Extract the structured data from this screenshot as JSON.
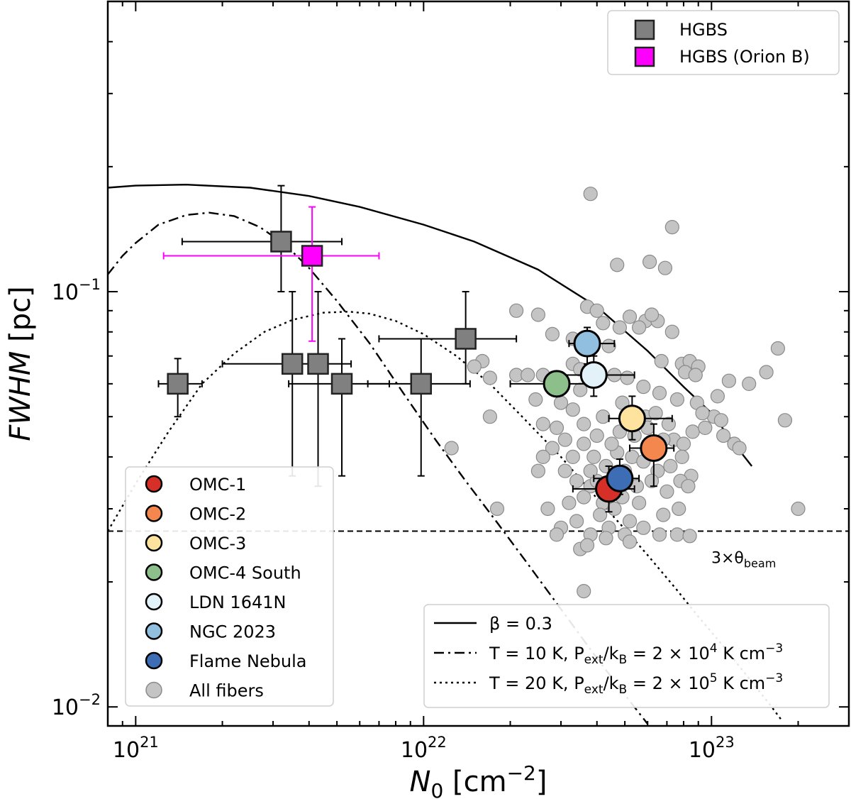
{
  "chart_data": {
    "type": "scatter",
    "xscale": "log",
    "yscale": "log",
    "xlim": [
      8e+20,
      3e+23
    ],
    "ylim": [
      0.009,
      0.5
    ],
    "xlabel": "N",
    "xlabel_sub": "0",
    "xlabel_units": "[cm",
    "xlabel_units_sup": "−2",
    "xlabel_units_end": "]",
    "ylabel": "FWHM",
    "ylabel_units": " [pc]",
    "x_ticks": [
      {
        "value": 1e+21,
        "base": "10",
        "exp": "21"
      },
      {
        "value": 1e+22,
        "base": "10",
        "exp": "22"
      },
      {
        "value": 1e+23,
        "base": "10",
        "exp": "23"
      }
    ],
    "y_ticks": [
      {
        "value": 0.01,
        "base": "10",
        "exp": "−2"
      },
      {
        "value": 0.1,
        "base": "10",
        "exp": "−1"
      }
    ],
    "beam_line": {
      "y": 0.0265,
      "label": "3×θ",
      "label_sub": "beam"
    },
    "curves": [
      {
        "name": "beta",
        "style": "solid",
        "legend": "β = 0.3",
        "points": [
          [
            8e+20,
            0.178
          ],
          [
            1e+21,
            0.18
          ],
          [
            1.5e+21,
            0.181
          ],
          [
            2.5e+21,
            0.178
          ],
          [
            4e+21,
            0.17
          ],
          [
            6e+21,
            0.16
          ],
          [
            1e+22,
            0.145
          ],
          [
            1.5e+22,
            0.132
          ],
          [
            2.5e+22,
            0.113
          ],
          [
            4e+22,
            0.092
          ],
          [
            6e+22,
            0.072
          ],
          [
            8e+22,
            0.059
          ],
          [
            1e+23,
            0.051
          ],
          [
            1.2e+23,
            0.043
          ],
          [
            1.38e+23,
            0.038
          ]
        ]
      },
      {
        "name": "t10",
        "style": "dashdot",
        "legend_pre": "T = 10 K, P",
        "legend_sub": "ext",
        "legend_mid": "/k",
        "legend_sub2": "B",
        "legend_post": " = 2 × 10",
        "legend_sup": "4",
        "legend_end": " K cm",
        "legend_sup2": "−3",
        "points": [
          [
            8e+20,
            0.11
          ],
          [
            9e+20,
            0.122
          ],
          [
            1e+21,
            0.131
          ],
          [
            1.2e+21,
            0.145
          ],
          [
            1.5e+21,
            0.153
          ],
          [
            1.8e+21,
            0.155
          ],
          [
            2.2e+21,
            0.152
          ],
          [
            2.7e+21,
            0.143
          ],
          [
            3.3e+21,
            0.13
          ],
          [
            4e+21,
            0.114
          ],
          [
            5e+21,
            0.095
          ],
          [
            6.5e+21,
            0.075
          ],
          [
            8.5e+21,
            0.057
          ],
          [
            1.1e+22,
            0.044
          ],
          [
            1.4e+22,
            0.035
          ],
          [
            1.8e+22,
            0.0278
          ],
          [
            2.3e+22,
            0.0221
          ],
          [
            3e+22,
            0.0172
          ],
          [
            4e+22,
            0.0131
          ],
          [
            5e+22,
            0.0107
          ],
          [
            6e+22,
            0.0091
          ]
        ]
      },
      {
        "name": "t20",
        "style": "dotted",
        "legend_pre": "T = 20 K, P",
        "legend_sub": "ext",
        "legend_mid": "/k",
        "legend_sub2": "B",
        "legend_post": " = 2 × 10",
        "legend_sup": "5",
        "legend_end": " K cm",
        "legend_sup2": "−3",
        "points": [
          [
            8e+20,
            0.0265
          ],
          [
            1e+21,
            0.0345
          ],
          [
            1.3e+21,
            0.046
          ],
          [
            1.7e+21,
            0.06
          ],
          [
            2.2e+21,
            0.071
          ],
          [
            2.8e+21,
            0.08
          ],
          [
            3.5e+21,
            0.0855
          ],
          [
            4.5e+21,
            0.089
          ],
          [
            5.5e+21,
            0.0895
          ],
          [
            6.5e+21,
            0.0885
          ],
          [
            8e+21,
            0.085
          ],
          [
            1e+22,
            0.079
          ],
          [
            1.3e+22,
            0.07
          ],
          [
            1.7e+22,
            0.06
          ],
          [
            2.2e+22,
            0.05
          ],
          [
            3e+22,
            0.04
          ],
          [
            4e+22,
            0.0318
          ],
          [
            5e+22,
            0.0268
          ],
          [
            6e+22,
            0.0232
          ],
          [
            7.5e+22,
            0.0193
          ],
          [
            9e+22,
            0.0165
          ],
          [
            1.1e+23,
            0.014
          ],
          [
            1.3e+23,
            0.0121
          ],
          [
            1.6e+23,
            0.0101
          ],
          [
            1.75e+23,
            0.0093
          ]
        ]
      }
    ],
    "hgbs_points": [
      {
        "x": 1.4e+21,
        "y": 0.06,
        "xerr": [
          1.2e+21,
          1.7e+21
        ],
        "yerr": [
          0.05,
          0.069
        ]
      },
      {
        "x": 3.2e+21,
        "y": 0.132,
        "xerr": [
          1.45e+21,
          5.2e+21
        ],
        "yerr": [
          0.1,
          0.18
        ]
      },
      {
        "x": 3.5e+21,
        "y": 0.067,
        "xerr": [
          2e+21,
          4.4e+21
        ],
        "yerr": [
          0.036,
          0.1
        ]
      },
      {
        "x": 4.3e+21,
        "y": 0.067,
        "xerr": [
          4.3e+21,
          5.6e+21
        ],
        "yerr": [
          0.034,
          0.1
        ]
      },
      {
        "x": 5.2e+21,
        "y": 0.06,
        "xerr": [
          3.4e+21,
          7.6e+21
        ],
        "yerr": [
          0.036,
          0.077
        ]
      },
      {
        "x": 9.8e+21,
        "y": 0.06,
        "xerr": [
          6.4e+21,
          1.45e+22
        ],
        "yerr": [
          0.036,
          0.077
        ]
      },
      {
        "x": 1.4e+22,
        "y": 0.077,
        "xerr": [
          7e+21,
          2.1e+22
        ],
        "yerr": [
          0.06,
          0.1
        ]
      }
    ],
    "hgbs_orion_points": [
      {
        "x": 4.1e+21,
        "y": 0.122,
        "xerr": [
          1.25e+21,
          7e+21
        ],
        "yerr": [
          0.076,
          0.16
        ]
      }
    ],
    "regions": [
      {
        "name": "OMC-1",
        "color": "#d62f27",
        "x": 4.4e+22,
        "y": 0.0335,
        "xerr": [
          3.3e+22,
          5.4e+22
        ],
        "yerr": [
          0.0295,
          0.038
        ]
      },
      {
        "name": "OMC-2",
        "color": "#f4874d",
        "x": 6.3e+22,
        "y": 0.042,
        "xerr": [
          5.2e+22,
          7.4e+22
        ],
        "yerr": [
          0.034,
          0.048
        ]
      },
      {
        "name": "OMC-3",
        "color": "#fde39d",
        "x": 5.3e+22,
        "y": 0.0495,
        "xerr": [
          4.4e+22,
          7.3e+22
        ],
        "yerr": [
          0.044,
          0.056
        ]
      },
      {
        "name": "OMC-4 South",
        "color": "#8dbf8b",
        "x": 2.9e+22,
        "y": 0.06,
        "xerr": [
          2e+22,
          4e+22
        ],
        "yerr": [
          0.056,
          0.063
        ]
      },
      {
        "name": "LDN 1641N",
        "color": "#e3f2f9",
        "x": 3.9e+22,
        "y": 0.063,
        "xerr": [
          3e+22,
          5.4e+22
        ],
        "yerr": [
          0.056,
          0.07
        ]
      },
      {
        "name": "NGC 2023",
        "color": "#91bfdf",
        "x": 3.7e+22,
        "y": 0.075,
        "xerr": [
          3.2e+22,
          4.6e+22
        ],
        "yerr": [
          0.067,
          0.082
        ]
      },
      {
        "name": "Flame Nebula",
        "color": "#3d6eb5",
        "x": 4.8e+22,
        "y": 0.0355,
        "xerr": [
          3.9e+22,
          5.6e+22
        ],
        "yerr": [
          0.0325,
          0.0395
        ]
      }
    ],
    "legend_upper": [
      {
        "label": "HGBS",
        "color": "#808080"
      },
      {
        "label": "HGBS (Orion B)",
        "color": "#ff00ff"
      }
    ],
    "all_fibers_label": "All fibers",
    "all_fibers": [
      [
        3.8e+22,
        0.172
      ],
      [
        7.3e+22,
        0.143
      ],
      [
        6.1e+22,
        0.118
      ],
      [
        6.9e+22,
        0.114
      ],
      [
        4.7e+22,
        0.116
      ],
      [
        3.7e+22,
        0.092
      ],
      [
        4e+22,
        0.09
      ],
      [
        2.1e+22,
        0.09
      ],
      [
        2.5e+22,
        0.088
      ],
      [
        4.2e+22,
        0.084
      ],
      [
        5.2e+22,
        0.087
      ],
      [
        5.9e+22,
        0.085
      ],
      [
        6.5e+22,
        0.085
      ],
      [
        6.2e+22,
        0.088
      ],
      [
        4.8e+22,
        0.082
      ],
      [
        5.6e+22,
        0.082
      ],
      [
        7.3e+22,
        0.08
      ],
      [
        2.8e+22,
        0.079
      ],
      [
        3.3e+22,
        0.077
      ],
      [
        4.4e+22,
        0.074
      ],
      [
        6.7e+22,
        0.068
      ],
      [
        7.9e+22,
        0.067
      ],
      [
        8.4e+22,
        0.068
      ],
      [
        9e+22,
        0.066
      ],
      [
        8.1e+22,
        0.064
      ],
      [
        8.8e+22,
        0.063
      ],
      [
        1.6e+22,
        0.068
      ],
      [
        1.7e+22,
        0.062
      ],
      [
        1.5e+22,
        0.066
      ],
      [
        2.1e+22,
        0.063
      ],
      [
        2.3e+22,
        0.063
      ],
      [
        2.6e+22,
        0.063
      ],
      [
        3.3e+22,
        0.067
      ],
      [
        3.5e+22,
        0.065
      ],
      [
        4.6e+22,
        0.063
      ],
      [
        5.1e+22,
        0.062
      ],
      [
        5.8e+22,
        0.059
      ],
      [
        6.6e+22,
        0.057
      ],
      [
        7.6e+22,
        0.055
      ],
      [
        8.9e+22,
        0.054
      ],
      [
        1.05e+23,
        0.056
      ],
      [
        1.15e+23,
        0.061
      ],
      [
        1.35e+23,
        0.06
      ],
      [
        1.55e+23,
        0.064
      ],
      [
        1.7e+23,
        0.073
      ],
      [
        1.8e+23,
        0.049
      ],
      [
        1.02e+23,
        0.05
      ],
      [
        1.08e+23,
        0.049
      ],
      [
        9.3e+22,
        0.051
      ],
      [
        1.1e+23,
        0.045
      ],
      [
        1.2e+23,
        0.043
      ],
      [
        1.25e+23,
        0.042
      ],
      [
        1.7e+22,
        0.05
      ],
      [
        2.45e+22,
        0.055
      ],
      [
        3e+22,
        0.054
      ],
      [
        3.3e+22,
        0.052
      ],
      [
        2.9e+22,
        0.047
      ],
      [
        2.6e+22,
        0.048
      ],
      [
        3.1e+22,
        0.044
      ],
      [
        3.6e+22,
        0.048
      ],
      [
        4.2e+22,
        0.05
      ],
      [
        4.8e+22,
        0.046
      ],
      [
        5.4e+22,
        0.045
      ],
      [
        5.9e+22,
        0.05
      ],
      [
        6.4e+22,
        0.051
      ],
      [
        7.4e+22,
        0.044
      ],
      [
        8e+22,
        0.043
      ],
      [
        8.6e+22,
        0.046
      ],
      [
        9.5e+22,
        0.047
      ],
      [
        2.8e+22,
        0.042
      ],
      [
        3.3e+22,
        0.04
      ],
      [
        3.6e+22,
        0.043
      ],
      [
        3.9e+22,
        0.04
      ],
      [
        4.3e+22,
        0.038
      ],
      [
        4.7e+22,
        0.041
      ],
      [
        5.3e+22,
        0.04
      ],
      [
        5.8e+22,
        0.039
      ],
      [
        6.5e+22,
        0.037
      ],
      [
        7.2e+22,
        0.038
      ],
      [
        7.9e+22,
        0.04
      ],
      [
        8.5e+22,
        0.036
      ],
      [
        2.5e+22,
        0.037
      ],
      [
        3.1e+22,
        0.037
      ],
      [
        3.4e+22,
        0.035
      ],
      [
        3.8e+22,
        0.034
      ],
      [
        4.2e+22,
        0.031
      ],
      [
        4.9e+22,
        0.032
      ],
      [
        5.5e+22,
        0.034
      ],
      [
        6.2e+22,
        0.035
      ],
      [
        7e+22,
        0.033
      ],
      [
        7.8e+22,
        0.035
      ],
      [
        8.3e+22,
        0.034
      ],
      [
        3.2e+22,
        0.031
      ],
      [
        3.6e+22,
        0.032
      ],
      [
        4.1e+22,
        0.029
      ],
      [
        4.6e+22,
        0.03
      ],
      [
        5.2e+22,
        0.028
      ],
      [
        5.6e+22,
        0.031
      ],
      [
        6.8e+22,
        0.029
      ],
      [
        7.7e+22,
        0.03
      ],
      [
        2.7e+22,
        0.03
      ],
      [
        3e+22,
        0.027
      ],
      [
        3.4e+22,
        0.028
      ],
      [
        3.8e+22,
        0.026
      ],
      [
        4.4e+22,
        0.027
      ],
      [
        5e+22,
        0.026
      ],
      [
        5.8e+22,
        0.027
      ],
      [
        6.6e+22,
        0.026
      ],
      [
        2.9e+22,
        0.026
      ],
      [
        3.5e+22,
        0.024
      ],
      [
        3.7e+22,
        0.0245
      ],
      [
        3.6e+22,
        0.019
      ],
      [
        4.3e+22,
        0.0255
      ],
      [
        5.2e+22,
        0.025
      ],
      [
        7.6e+22,
        0.026
      ],
      [
        8.4e+22,
        0.0258
      ],
      [
        1.25e+22,
        0.042
      ],
      [
        1.8e+22,
        0.03
      ],
      [
        2e+23,
        0.03
      ],
      [
        2.6e+22,
        0.04
      ],
      [
        4e+22,
        0.045
      ],
      [
        4.5e+22,
        0.043
      ],
      [
        3.5e+22,
        0.058
      ],
      [
        4.9e+22,
        0.054
      ],
      [
        6e+22,
        0.047
      ],
      [
        6.8e+22,
        0.044
      ],
      [
        7.1e+22,
        0.048
      ],
      [
        5e+22,
        0.037
      ],
      [
        4e+22,
        0.035
      ],
      [
        3.8e+22,
        0.037
      ]
    ]
  }
}
